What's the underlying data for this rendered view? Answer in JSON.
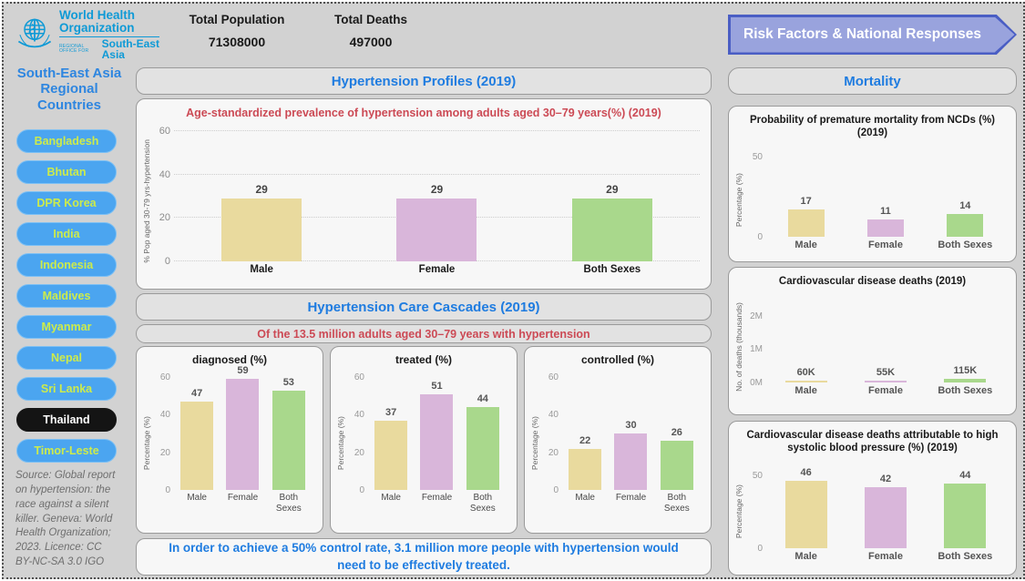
{
  "header": {
    "logo": {
      "org": "World Health Organization",
      "office": "REGIONAL OFFICE FOR",
      "region": "South-East Asia"
    },
    "total_population_label": "Total Population",
    "total_population_value": "71308000",
    "total_deaths_label": "Total Deaths",
    "total_deaths_value": "497000",
    "risk_button_label": "Risk Factors & National Responses"
  },
  "sidebar": {
    "title": "South-East Asia Regional Countries",
    "countries": [
      {
        "label": "Bangladesh",
        "selected": false
      },
      {
        "label": "Bhutan",
        "selected": false
      },
      {
        "label": "DPR Korea",
        "selected": false
      },
      {
        "label": "India",
        "selected": false
      },
      {
        "label": "Indonesia",
        "selected": false
      },
      {
        "label": "Maldives",
        "selected": false
      },
      {
        "label": "Myanmar",
        "selected": false
      },
      {
        "label": "Nepal",
        "selected": false
      },
      {
        "label": "Sri Lanka",
        "selected": false
      },
      {
        "label": "Thailand",
        "selected": true
      },
      {
        "label": "Timor-Leste",
        "selected": false
      }
    ],
    "source": "Source: Global report on hypertension: the race against a silent killer. Geneva: World Health Organization; 2023. Licence: CC BY-NC-SA 3.0 IGO"
  },
  "main": {
    "profiles_header": "Hypertension Profiles (2019)",
    "cascades_header": "Hypertension Care Cascades (2019)",
    "cascades_subtitle": "Of the 13.5 million adults aged 30–79 years with hypertension",
    "note": "In order to achieve a 50% control rate, 3.1 million more people with hypertension would need to be effectively treated."
  },
  "right": {
    "mortality_header": "Mortality"
  },
  "colors": {
    "bars": [
      "#e9da9e",
      "#d9b6da",
      "#a9d88c"
    ],
    "accent_blue": "#1f7ce0",
    "accent_red": "#cc4a55",
    "sidebar_button": "#4ba5f0",
    "sidebar_button_text": "#cdeb4b",
    "selected_button": "#141414",
    "arrow_fill": "#99a3dd",
    "arrow_border": "#4a5ec4",
    "who_blue": "#0f9ad6"
  },
  "chart_data": [
    {
      "type": "bar",
      "title": "Age-standardized prevalence of hypertension among adults aged 30–79 years(%) (2019)",
      "categories": [
        "Male",
        "Female",
        "Both Sexes"
      ],
      "values": [
        29,
        29,
        29
      ],
      "xlabel": "",
      "ylabel": "% Pop aged 30-79 yrs-hypertension",
      "ylim": [
        0,
        63
      ],
      "ticks": [
        0,
        20,
        40,
        60
      ],
      "grid": true,
      "legend": "none"
    },
    {
      "type": "bar",
      "title": "diagnosed (%)",
      "categories": [
        "Male",
        "Female",
        "Both\nSexes"
      ],
      "values": [
        47,
        59,
        53
      ],
      "xlabel": "",
      "ylabel": "Percentage (%)",
      "ylim": [
        0,
        63
      ],
      "ticks": [
        0,
        20,
        40,
        60
      ],
      "grid": false,
      "legend": "none"
    },
    {
      "type": "bar",
      "title": "treated (%)",
      "categories": [
        "Male",
        "Female",
        "Both\nSexes"
      ],
      "values": [
        37,
        51,
        44
      ],
      "xlabel": "",
      "ylabel": "Percentage (%)",
      "ylim": [
        0,
        63
      ],
      "ticks": [
        0,
        20,
        40,
        60
      ],
      "grid": false,
      "legend": "none"
    },
    {
      "type": "bar",
      "title": "controlled (%)",
      "categories": [
        "Male",
        "Female",
        "Both\nSexes"
      ],
      "values": [
        22,
        30,
        26
      ],
      "xlabel": "",
      "ylabel": "Percentage (%)",
      "ylim": [
        0,
        63
      ],
      "ticks": [
        0,
        20,
        40,
        60
      ],
      "grid": false,
      "legend": "none"
    },
    {
      "type": "bar",
      "title": "Probability of premature mortality from NCDs (%) (2019)",
      "categories": [
        "Male",
        "Female",
        "Both Sexes"
      ],
      "values": [
        17,
        11,
        14
      ],
      "xlabel": "",
      "ylabel": "Percentage (%)",
      "ylim": [
        0,
        55
      ],
      "ticks": [
        0,
        50
      ],
      "grid": false,
      "legend": "none"
    },
    {
      "type": "bar",
      "title": "Cardiovascular disease deaths (2019)",
      "categories": [
        "Male",
        "Female",
        "Both Sexes"
      ],
      "values": [
        60,
        55,
        115
      ],
      "value_labels": [
        "60K",
        "55K",
        "115K"
      ],
      "xlabel": "",
      "ylabel": "No. of deaths (thousands)",
      "ylim": [
        0,
        2600
      ],
      "ticks": [
        {
          "v": 0,
          "label": "0M"
        },
        {
          "v": 1000,
          "label": "1M"
        },
        {
          "v": 2000,
          "label": "2M"
        }
      ],
      "grid": false,
      "legend": "none"
    },
    {
      "type": "bar",
      "title": "Cardiovascular disease deaths attributable to high systolic blood pressure (%) (2019)",
      "categories": [
        "Male",
        "Female",
        "Both Sexes"
      ],
      "values": [
        46,
        42,
        44
      ],
      "xlabel": "",
      "ylabel": "Percentage (%)",
      "ylim": [
        0,
        60
      ],
      "ticks": [
        0,
        50
      ],
      "grid": false,
      "legend": "none"
    }
  ]
}
